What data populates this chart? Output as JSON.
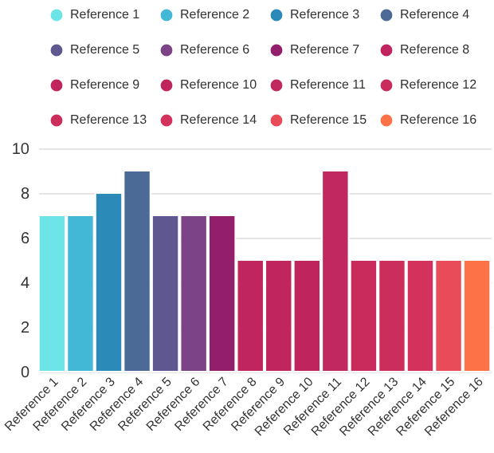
{
  "chart_data": {
    "type": "bar",
    "categories": [
      "Reference 1",
      "Reference 2",
      "Reference 3",
      "Reference 4",
      "Reference 5",
      "Reference 6",
      "Reference 7",
      "Reference 8",
      "Reference 9",
      "Reference 10",
      "Reference 11",
      "Reference 12",
      "Reference 13",
      "Reference 14",
      "Reference 15",
      "Reference 16"
    ],
    "series": [
      {
        "name": "Reference 1",
        "color": "#6de4e8",
        "values": [
          7,
          null,
          null,
          null,
          null,
          null,
          null,
          null,
          null,
          null,
          null,
          null,
          null,
          null,
          null,
          null
        ]
      },
      {
        "name": "Reference 2",
        "color": "#43b8d6",
        "values": [
          null,
          7,
          null,
          null,
          null,
          null,
          null,
          null,
          null,
          null,
          null,
          null,
          null,
          null,
          null,
          null
        ]
      },
      {
        "name": "Reference 3",
        "color": "#2c8ab8",
        "values": [
          null,
          null,
          8,
          null,
          null,
          null,
          null,
          null,
          null,
          null,
          null,
          null,
          null,
          null,
          null,
          null
        ]
      },
      {
        "name": "Reference 4",
        "color": "#4b6a96",
        "values": [
          null,
          null,
          null,
          9,
          null,
          null,
          null,
          null,
          null,
          null,
          null,
          null,
          null,
          null,
          null,
          null
        ]
      },
      {
        "name": "Reference 5",
        "color": "#5f5890",
        "values": [
          null,
          null,
          null,
          null,
          7,
          null,
          null,
          null,
          null,
          null,
          null,
          null,
          null,
          null,
          null,
          null
        ]
      },
      {
        "name": "Reference 6",
        "color": "#7c4486",
        "values": [
          null,
          null,
          null,
          null,
          null,
          7,
          null,
          null,
          null,
          null,
          null,
          null,
          null,
          null,
          null,
          null
        ]
      },
      {
        "name": "Reference 7",
        "color": "#921e6c",
        "values": [
          null,
          null,
          null,
          null,
          null,
          null,
          7,
          null,
          null,
          null,
          null,
          null,
          null,
          null,
          null,
          null
        ]
      },
      {
        "name": "Reference 8",
        "color": "#c1255f",
        "values": [
          null,
          null,
          null,
          null,
          null,
          null,
          null,
          5,
          null,
          null,
          null,
          null,
          null,
          null,
          null,
          null
        ]
      },
      {
        "name": "Reference 9",
        "color": "#c1255e",
        "values": [
          null,
          null,
          null,
          null,
          null,
          null,
          null,
          null,
          5,
          null,
          null,
          null,
          null,
          null,
          null,
          null
        ]
      },
      {
        "name": "Reference 10",
        "color": "#c0245d",
        "values": [
          null,
          null,
          null,
          null,
          null,
          null,
          null,
          null,
          null,
          5,
          null,
          null,
          null,
          null,
          null,
          null
        ]
      },
      {
        "name": "Reference 11",
        "color": "#c1285f",
        "values": [
          null,
          null,
          null,
          null,
          null,
          null,
          null,
          null,
          null,
          null,
          9,
          null,
          null,
          null,
          null,
          null
        ]
      },
      {
        "name": "Reference 12",
        "color": "#c92b5c",
        "values": [
          null,
          null,
          null,
          null,
          null,
          null,
          null,
          null,
          null,
          null,
          null,
          5,
          null,
          null,
          null,
          null
        ]
      },
      {
        "name": "Reference 13",
        "color": "#cc2e5c",
        "values": [
          null,
          null,
          null,
          null,
          null,
          null,
          null,
          null,
          null,
          null,
          null,
          null,
          5,
          null,
          null,
          null
        ]
      },
      {
        "name": "Reference 14",
        "color": "#d2325c",
        "values": [
          null,
          null,
          null,
          null,
          null,
          null,
          null,
          null,
          null,
          null,
          null,
          null,
          null,
          5,
          null,
          null
        ]
      },
      {
        "name": "Reference 15",
        "color": "#e84c59",
        "values": [
          null,
          null,
          null,
          null,
          null,
          null,
          null,
          null,
          null,
          null,
          null,
          null,
          null,
          null,
          5,
          null
        ]
      },
      {
        "name": "Reference 16",
        "color": "#fd7247",
        "values": [
          null,
          null,
          null,
          null,
          null,
          null,
          null,
          null,
          null,
          null,
          null,
          null,
          null,
          null,
          null,
          5
        ]
      }
    ],
    "ylim": [
      0,
      10
    ],
    "yticks": [
      0,
      2,
      4,
      6,
      8,
      10
    ],
    "grid": "y",
    "legend": "top"
  }
}
